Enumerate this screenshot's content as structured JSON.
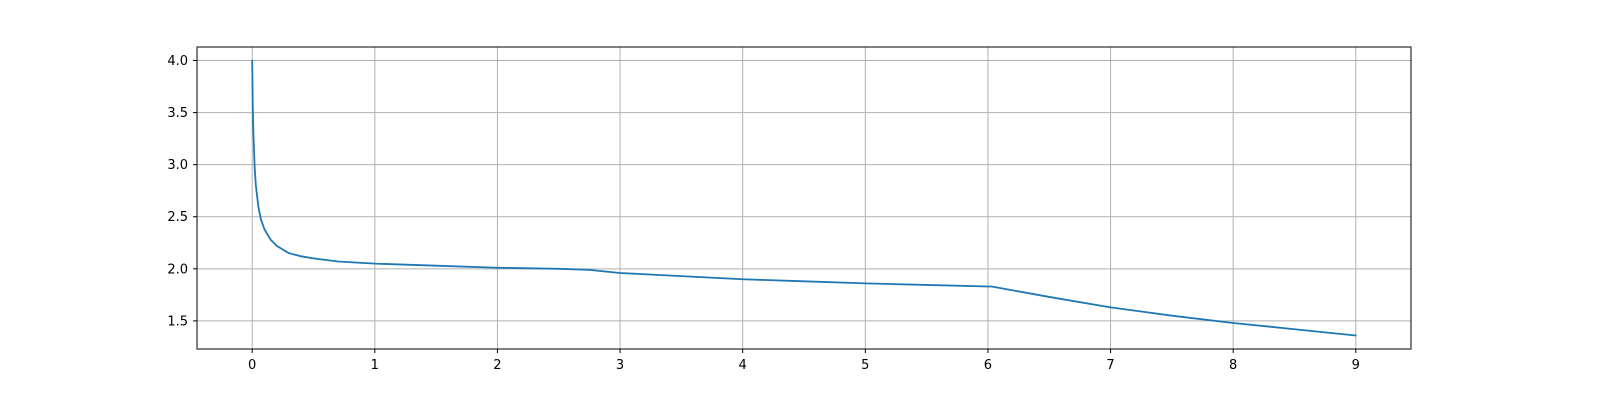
{
  "chart_data": {
    "type": "line",
    "title": "",
    "xlabel": "",
    "ylabel": "",
    "xlim": [
      -0.45,
      9.45
    ],
    "ylim": [
      1.23,
      4.13
    ],
    "grid": true,
    "xticks": [
      0,
      1,
      2,
      3,
      4,
      5,
      6,
      7,
      8,
      9
    ],
    "xtick_labels": [
      "0",
      "1",
      "2",
      "3",
      "4",
      "5",
      "6",
      "7",
      "8",
      "9"
    ],
    "yticks": [
      1.5,
      2.0,
      2.5,
      3.0,
      3.5,
      4.0
    ],
    "ytick_labels": [
      "1.5",
      "2.0",
      "2.5",
      "3.0",
      "3.5",
      "4.0"
    ],
    "series": [
      {
        "color": "#1f77b4",
        "x": [
          0,
          0.005,
          0.01,
          0.02,
          0.03,
          0.05,
          0.07,
          0.1,
          0.15,
          0.2,
          0.3,
          0.4,
          0.5,
          0.7,
          1.0,
          1.5,
          2.0,
          2.5,
          2.75,
          3.0,
          3.5,
          4.0,
          4.5,
          5.0,
          5.5,
          6.0,
          6.03,
          6.5,
          7.0,
          7.5,
          8.0,
          8.5,
          9.0
        ],
        "y": [
          4.0,
          3.55,
          3.3,
          2.98,
          2.8,
          2.6,
          2.48,
          2.38,
          2.28,
          2.22,
          2.15,
          2.12,
          2.1,
          2.07,
          2.05,
          2.03,
          2.01,
          2.0,
          1.99,
          1.96,
          1.93,
          1.9,
          1.88,
          1.86,
          1.845,
          1.83,
          1.83,
          1.73,
          1.63,
          1.55,
          1.48,
          1.42,
          1.36
        ]
      }
    ]
  }
}
